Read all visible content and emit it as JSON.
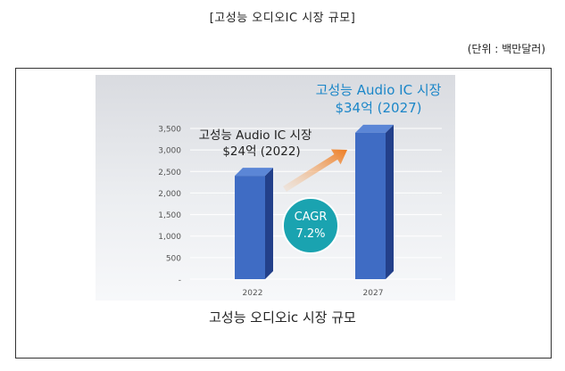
{
  "title": "[고성능 오디오IC 시장 규모]",
  "unit": "(단위 : 백만달러)",
  "caption": "고성능 오디오ic 시장 규모",
  "colors": {
    "bar_front": "#3f6cc4",
    "bar_side": "#23408a",
    "bar_top": "#5b86d6",
    "highlight_text": "#1b86c8",
    "cagr_circle": "#1aa3b0",
    "arrow": "#f08a2e"
  },
  "chart_data": {
    "type": "bar",
    "categories": [
      "2022",
      "2027"
    ],
    "values": [
      2400,
      3400
    ],
    "ylim": [
      0,
      3500
    ],
    "yticks": [
      0,
      500,
      1000,
      1500,
      2000,
      2500,
      3000,
      3500
    ],
    "ytick_labels": [
      "-",
      "500",
      "1,000",
      "1,500",
      "2,000",
      "2,500",
      "3,000",
      "3,500"
    ],
    "grid": true,
    "annotations": [
      {
        "line1": "고성능 Audio IC 시장",
        "line2": "$24억 (2022)"
      },
      {
        "line1": "고성능 Audio IC 시장",
        "line2": "$34억 (2027)"
      }
    ],
    "cagr": {
      "label": "CAGR",
      "value": "7.2%"
    }
  }
}
